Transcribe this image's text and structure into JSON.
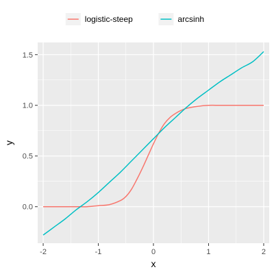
{
  "chart_data": {
    "type": "line",
    "xlabel": "x",
    "ylabel": "y",
    "xlim": [
      -2.1,
      2.1
    ],
    "ylim": [
      -0.36,
      1.62
    ],
    "x_ticks": [
      -2,
      -1,
      0,
      1,
      2
    ],
    "y_ticks": [
      0.0,
      0.5,
      1.0,
      1.5
    ],
    "x_tick_labels": [
      "-2",
      "-1",
      "0",
      "1",
      "2"
    ],
    "y_tick_labels": [
      "0.0",
      "0.5",
      "1.0",
      "1.5"
    ],
    "grid": true,
    "legend_position": "top",
    "series": [
      {
        "name": "logistic-steep",
        "color": "#F8766D",
        "x": [
          -2,
          -1.8,
          -1.6,
          -1.4,
          -1.2,
          -1,
          -0.8,
          -0.6,
          -0.5,
          -0.4,
          -0.3,
          -0.2,
          -0.1,
          0,
          0.1,
          0.2,
          0.3,
          0.4,
          0.5,
          0.6,
          0.8,
          1,
          1.2,
          1.4,
          1.6,
          1.8,
          2
        ],
        "y": [
          0.0,
          0.0,
          0.0,
          0.0,
          0.0,
          0.01,
          0.02,
          0.06,
          0.1,
          0.17,
          0.27,
          0.38,
          0.5,
          0.62,
          0.73,
          0.82,
          0.88,
          0.92,
          0.95,
          0.97,
          0.99,
          1.0,
          1.0,
          1.0,
          1.0,
          1.0,
          1.0
        ]
      },
      {
        "name": "arcsinh",
        "color": "#00BFC4",
        "x": [
          -2,
          -1.8,
          -1.6,
          -1.4,
          -1.2,
          -1,
          -0.8,
          -0.6,
          -0.4,
          -0.2,
          0,
          0.2,
          0.4,
          0.6,
          0.8,
          1,
          1.2,
          1.4,
          1.6,
          1.8,
          2
        ],
        "y": [
          -0.28,
          -0.2,
          -0.12,
          -0.03,
          0.05,
          0.14,
          0.24,
          0.34,
          0.45,
          0.56,
          0.67,
          0.78,
          0.88,
          0.98,
          1.07,
          1.15,
          1.23,
          1.3,
          1.37,
          1.43,
          1.53
        ]
      }
    ]
  }
}
